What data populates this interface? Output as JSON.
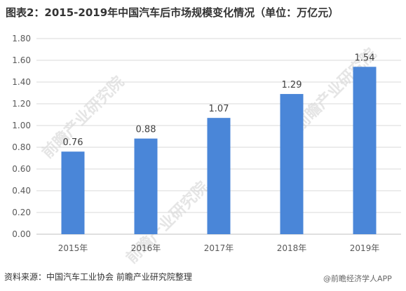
{
  "title": "图表2：2015-2019年中国汽车后市场规模变化情况（单位：万亿元）",
  "source": "资料来源：中国汽车工业协会  前瞻产业研究院整理",
  "watermark": "前瞻产业研究院",
  "weibo_tag": "@前瞻经济学人APP",
  "colors": {
    "bar": "#4A86D8",
    "grid": "#D9D9D9",
    "axis": "#BFBFBF"
  },
  "chart_data": {
    "type": "bar",
    "categories": [
      "2015年",
      "2016年",
      "2017年",
      "2018年",
      "2019年"
    ],
    "values": [
      0.76,
      0.88,
      1.07,
      1.29,
      1.54
    ],
    "data_labels": [
      "0.76",
      "0.88",
      "1.07",
      "1.29",
      "1.54"
    ],
    "ylim": [
      0,
      1.8
    ],
    "y_ticks": [
      "0.00",
      "0.20",
      "0.40",
      "0.60",
      "0.80",
      "1.00",
      "1.20",
      "1.40",
      "1.60",
      "1.80"
    ],
    "grid": true,
    "xlabel": "",
    "ylabel": ""
  }
}
